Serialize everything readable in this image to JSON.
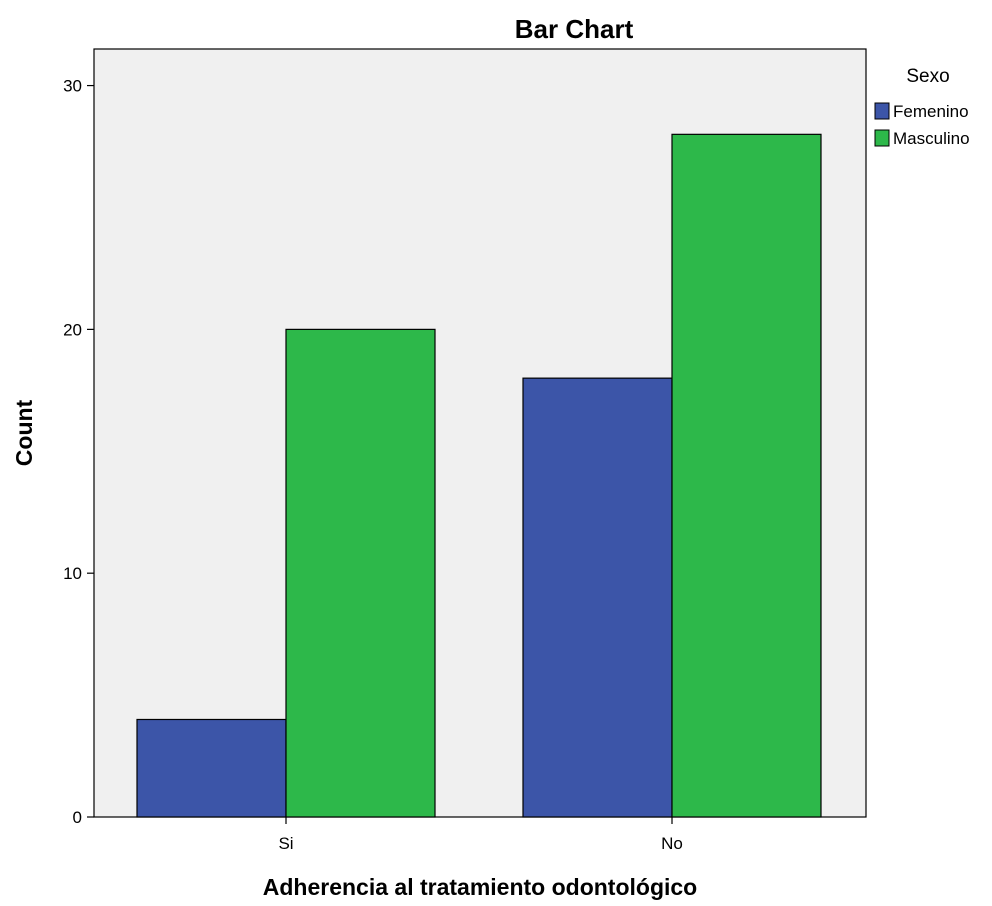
{
  "chart_data": {
    "type": "bar",
    "title": "Bar Chart",
    "xlabel": "Adherencia al tratamiento odontológico",
    "ylabel": "Count",
    "categories": [
      "Si",
      "No"
    ],
    "series": [
      {
        "name": "Femenino",
        "values": [
          4,
          18
        ],
        "color": "#3c55a8"
      },
      {
        "name": "Masculino",
        "values": [
          20,
          28
        ],
        "color": "#2db84a"
      }
    ],
    "ylim": [
      0,
      31.5
    ],
    "yticks": [
      0,
      10,
      20,
      30
    ],
    "legend": {
      "title": "Sexo",
      "placement": "top-right"
    },
    "grid": false,
    "plot_background": "#f0f0f0"
  }
}
